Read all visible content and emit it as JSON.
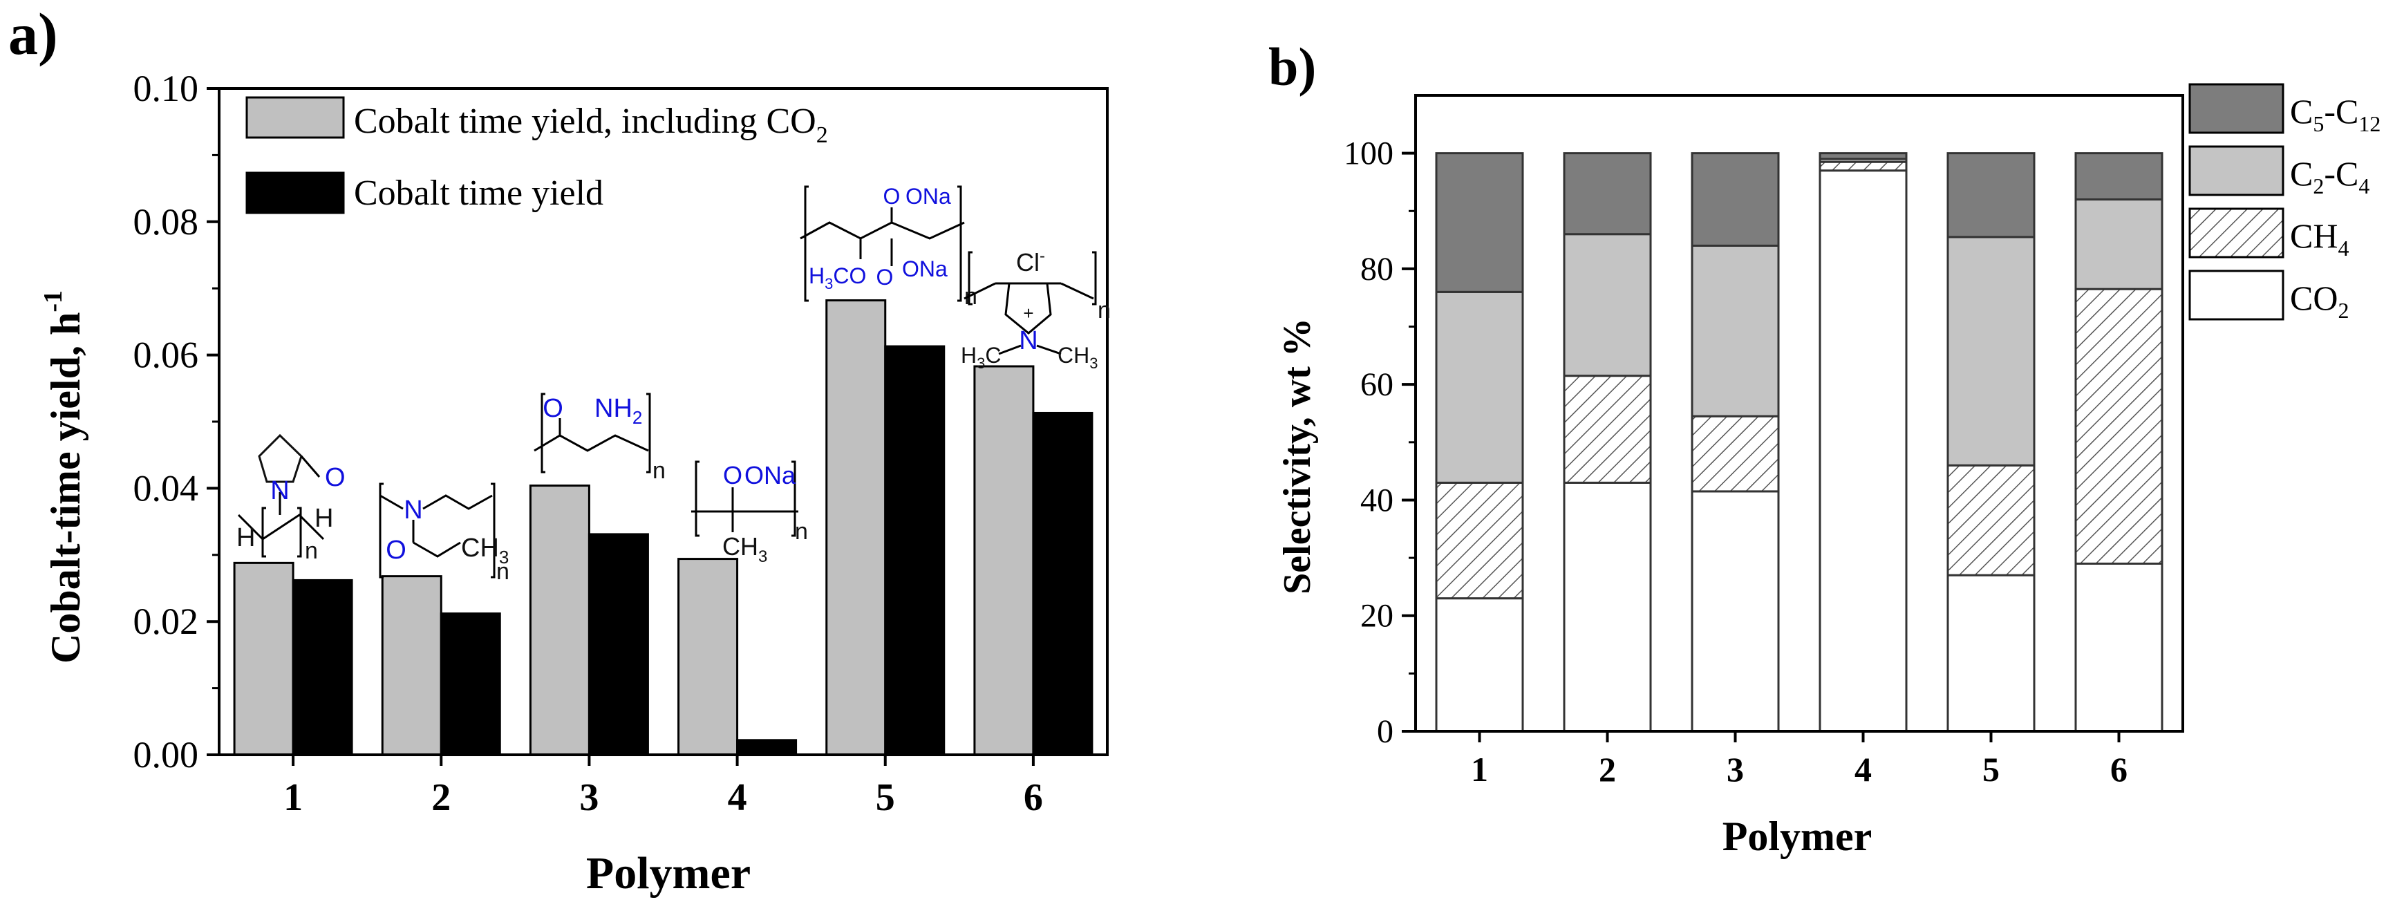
{
  "chart_data": [
    {
      "panel_label": "a)",
      "type": "bar",
      "xlabel": "Polymer",
      "ylabel": "Cobalt-time yield, h",
      "ylabel_sup": "-1",
      "ylim": [
        0,
        0.1
      ],
      "yticks": [
        "0.00",
        "0.02",
        "0.04",
        "0.06",
        "0.08",
        "0.10"
      ],
      "categories": [
        "1",
        "2",
        "3",
        "4",
        "5",
        "6"
      ],
      "legend_position": "top-left",
      "series": [
        {
          "name": "Cobalt time yield, including CO",
          "name_sub": "2",
          "color": "#c0c0c0",
          "values": [
            0.0288,
            0.0268,
            0.0404,
            0.0294,
            0.0682,
            0.0583
          ]
        },
        {
          "name": "Cobalt time yield",
          "color": "#000000",
          "values": [
            0.0262,
            0.0212,
            0.0331,
            0.0022,
            0.0613,
            0.0513
          ]
        }
      ],
      "structure_labels": {
        "p1": {
          "h_left": "H",
          "h_right": "H",
          "n": "n",
          "N": "N",
          "O": "O"
        },
        "p2": {
          "N": "N",
          "O": "O",
          "ch3": "CH",
          "ch3_sub": "3",
          "n": "n"
        },
        "p3": {
          "O": "O",
          "nh2": "NH",
          "nh2_sub": "2",
          "n": "n"
        },
        "p4": {
          "ona": "ONa",
          "O": "O",
          "ch3": "CH",
          "ch3_sub": "3",
          "n": "n"
        },
        "p5": {
          "O": "O",
          "ona_top": "ONa",
          "h3co": "H",
          "h3co_sub": "3",
          "h3co_tail": "CO",
          "ona_bottom": "ONa",
          "n": "n"
        },
        "p6": {
          "cl": "Cl",
          "cl_sup": "-",
          "N": "N",
          "plus": "+",
          "h3c": "H",
          "h3c_sub": "3",
          "h3c_tail": "C",
          "ch3": "CH",
          "ch3_sub": "3",
          "n": "n"
        }
      }
    },
    {
      "panel_label": "b)",
      "type": "bar",
      "stacked": true,
      "xlabel": "Polymer",
      "ylabel": "Selectivity, wt %",
      "ylim": [
        0,
        110
      ],
      "yticks": [
        "0",
        "20",
        "40",
        "60",
        "80",
        "100"
      ],
      "categories": [
        "1",
        "2",
        "3",
        "4",
        "5",
        "6"
      ],
      "legend_position": "right",
      "series": [
        {
          "name": "CO",
          "name_sub": "2",
          "fill": "#ffffff",
          "values": [
            23,
            43,
            41.5,
            97,
            27,
            29
          ]
        },
        {
          "name": "CH",
          "name_sub": "4",
          "fill": "hatch",
          "values": [
            20,
            18.5,
            13,
            1.5,
            19,
            47.5
          ]
        },
        {
          "name": "C",
          "name_sub": "2",
          "name_mid": "-C",
          "name_sub2": "4",
          "fill": "#c4c4c4",
          "values": [
            33,
            24.5,
            29.5,
            0.5,
            39.5,
            15.5
          ]
        },
        {
          "name": "C",
          "name_sub": "5",
          "name_mid": "-C",
          "name_sub2": "12",
          "fill": "#7d7d7d",
          "values": [
            24,
            14,
            16,
            1,
            14.5,
            8
          ]
        }
      ]
    }
  ]
}
